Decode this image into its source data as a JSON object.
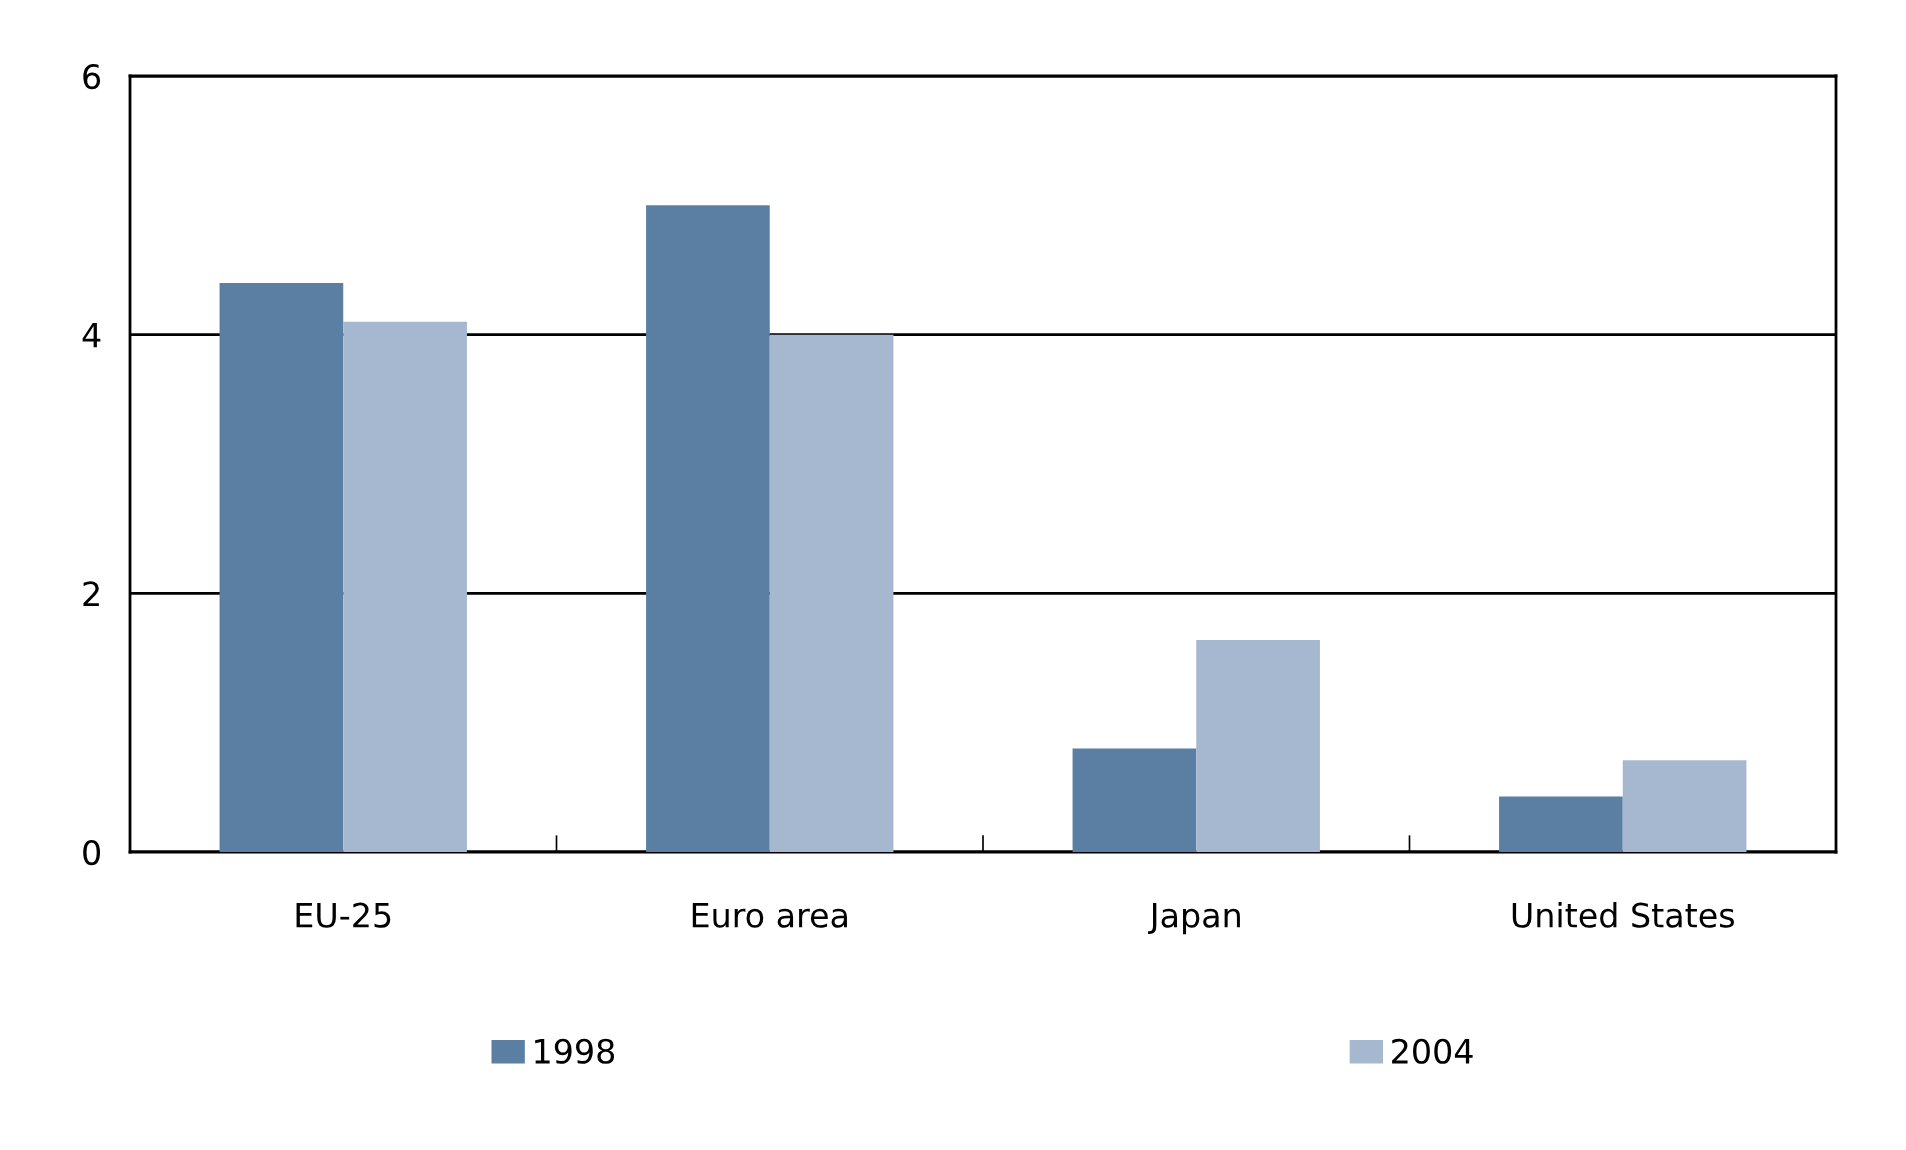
{
  "chart_data": {
    "type": "bar",
    "categories": [
      "EU-25",
      "Euro area",
      "Japan",
      "United States"
    ],
    "series": [
      {
        "name": "1998",
        "color": "#5b7fa3",
        "values": [
          4.4,
          5.0,
          0.8,
          0.43
        ]
      },
      {
        "name": "2004",
        "color": "#a6b8d0",
        "values": [
          4.1,
          4.0,
          1.64,
          0.71
        ]
      }
    ],
    "ylim": [
      0,
      6
    ],
    "yticks": [
      0,
      2,
      4,
      6
    ],
    "grid": "y",
    "legend": "bottom"
  }
}
